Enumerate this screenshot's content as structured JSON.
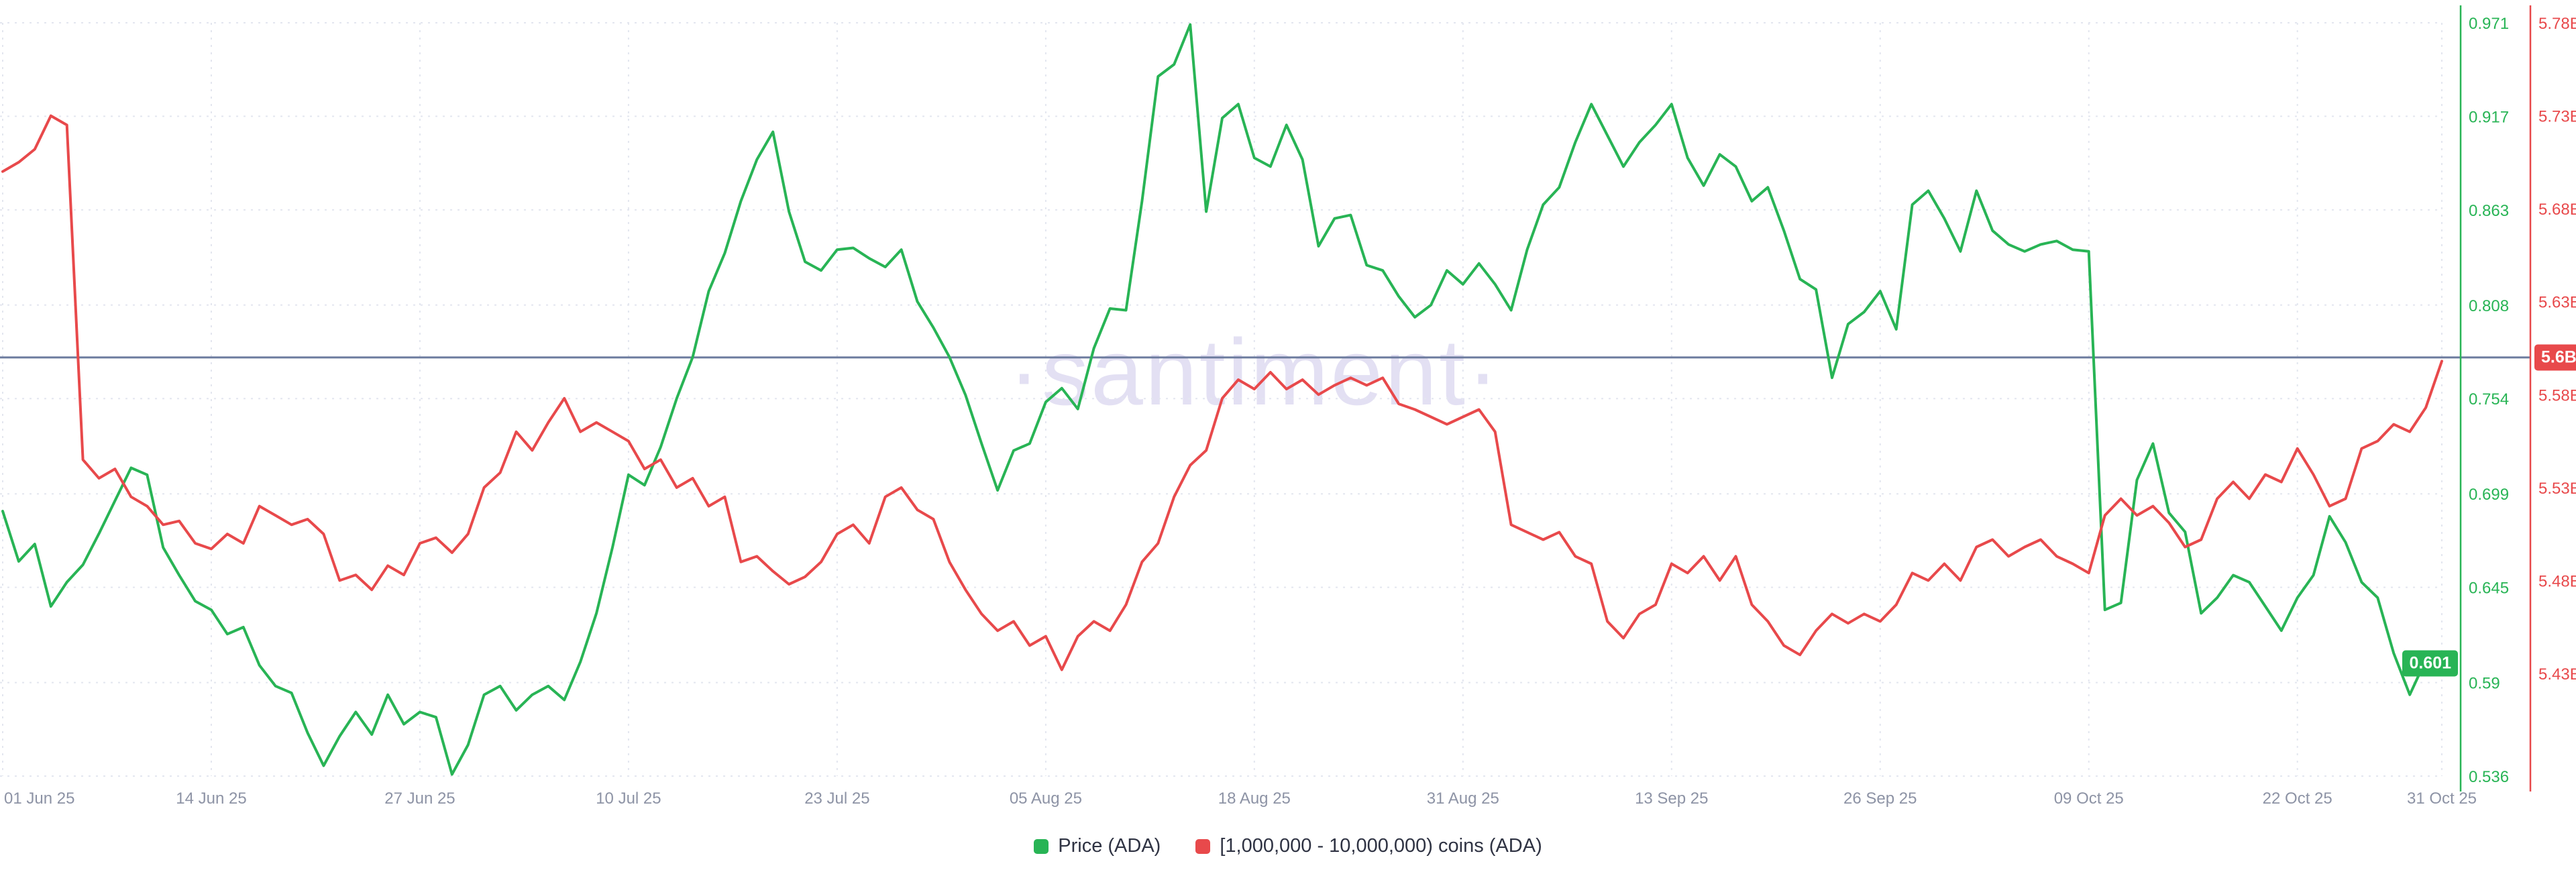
{
  "watermark": "·santiment·",
  "colors": {
    "price_line": "#28b455",
    "supply_line": "#e8494b",
    "reference_line": "#6c7b9e",
    "grid": "#e3e6ef",
    "x_label": "#8d93a5",
    "watermark": "#e3e0f3",
    "background": "#ffffff"
  },
  "badges": {
    "price_latest": "0.601",
    "supply_latest": "5.6B"
  },
  "legend": [
    {
      "label": "Price (ADA)",
      "color": "#28b455"
    },
    {
      "label": "[1,000,000 - 10,000,000) coins (ADA)",
      "color": "#e8494b"
    }
  ],
  "chart_data": {
    "type": "line",
    "title": "",
    "legend_position": "bottom",
    "grid": "dotted",
    "x_axis": {
      "total_days": 152,
      "ticks": [
        {
          "label": "01 Jun 25",
          "day": 0
        },
        {
          "label": "14 Jun 25",
          "day": 13
        },
        {
          "label": "27 Jun 25",
          "day": 26
        },
        {
          "label": "10 Jul 25",
          "day": 39
        },
        {
          "label": "23 Jul 25",
          "day": 52
        },
        {
          "label": "05 Aug 25",
          "day": 65
        },
        {
          "label": "18 Aug 25",
          "day": 78
        },
        {
          "label": "31 Aug 25",
          "day": 91
        },
        {
          "label": "13 Sep 25",
          "day": 104
        },
        {
          "label": "26 Sep 25",
          "day": 117
        },
        {
          "label": "09 Oct 25",
          "day": 130
        },
        {
          "label": "22 Oct 25",
          "day": 143
        },
        {
          "label": "31 Oct 25",
          "day": 152
        }
      ]
    },
    "price_axis": {
      "min": 0.536,
      "max": 0.971,
      "ticks": [
        {
          "label": "0.971",
          "value": 0.971
        },
        {
          "label": "0.917",
          "value": 0.917
        },
        {
          "label": "0.863",
          "value": 0.863
        },
        {
          "label": "0.808",
          "value": 0.808
        },
        {
          "label": "0.754",
          "value": 0.754
        },
        {
          "label": "0.699",
          "value": 0.699
        },
        {
          "label": "0.645",
          "value": 0.645
        },
        {
          "label": "0.59",
          "value": 0.59
        },
        {
          "label": "0.536",
          "value": 0.536
        }
      ]
    },
    "supply_axis": {
      "min": 5.43,
      "max": 5.78,
      "ticks": [
        {
          "label": "5.78B",
          "value": 5.78
        },
        {
          "label": "5.73B",
          "value": 5.73
        },
        {
          "label": "5.68B",
          "value": 5.68
        },
        {
          "label": "5.63B",
          "value": 5.63
        },
        {
          "label": "5.58B",
          "value": 5.58
        },
        {
          "label": "5.53B",
          "value": 5.53
        },
        {
          "label": "5.48B",
          "value": 5.48
        },
        {
          "label": "5.43B",
          "value": 5.43
        }
      ]
    },
    "reference_line": {
      "axis": "supply",
      "value": 5.6
    },
    "series": [
      {
        "name": "Price (ADA)",
        "axis": "price",
        "color": "#28b455",
        "values": [
          0.689,
          0.66,
          0.67,
          0.634,
          0.648,
          0.658,
          0.676,
          0.695,
          0.714,
          0.71,
          0.668,
          0.652,
          0.637,
          0.632,
          0.618,
          0.622,
          0.6,
          0.588,
          0.584,
          0.561,
          0.542,
          0.559,
          0.573,
          0.56,
          0.583,
          0.566,
          0.573,
          0.57,
          0.537,
          0.554,
          0.583,
          0.588,
          0.574,
          0.583,
          0.588,
          0.58,
          0.602,
          0.63,
          0.668,
          0.71,
          0.704,
          0.726,
          0.754,
          0.778,
          0.816,
          0.838,
          0.868,
          0.892,
          0.908,
          0.862,
          0.833,
          0.828,
          0.84,
          0.841,
          0.835,
          0.83,
          0.84,
          0.81,
          0.795,
          0.778,
          0.756,
          0.728,
          0.701,
          0.724,
          0.728,
          0.752,
          0.76,
          0.748,
          0.783,
          0.806,
          0.805,
          0.868,
          0.94,
          0.947,
          0.97,
          0.862,
          0.916,
          0.924,
          0.893,
          0.888,
          0.912,
          0.892,
          0.842,
          0.858,
          0.86,
          0.831,
          0.828,
          0.813,
          0.801,
          0.808,
          0.828,
          0.82,
          0.832,
          0.82,
          0.805,
          0.84,
          0.866,
          0.876,
          0.902,
          0.924,
          0.906,
          0.888,
          0.902,
          0.912,
          0.924,
          0.893,
          0.877,
          0.895,
          0.888,
          0.868,
          0.876,
          0.851,
          0.823,
          0.817,
          0.766,
          0.797,
          0.804,
          0.816,
          0.794,
          0.866,
          0.874,
          0.858,
          0.839,
          0.874,
          0.851,
          0.843,
          0.839,
          0.843,
          0.845,
          0.84,
          0.839,
          0.632,
          0.636,
          0.707,
          0.728,
          0.688,
          0.677,
          0.63,
          0.639,
          0.652,
          0.648,
          0.634,
          0.62,
          0.639,
          0.652,
          0.686,
          0.671,
          0.648,
          0.639,
          0.607,
          0.583,
          0.603,
          0.601
        ]
      },
      {
        "name": "[1,000,000 - 10,000,000) coins (ADA)",
        "axis": "supply",
        "color": "#e8494b",
        "values": [
          5.7,
          5.705,
          5.712,
          5.73,
          5.725,
          5.545,
          5.535,
          5.54,
          5.525,
          5.52,
          5.51,
          5.512,
          5.5,
          5.497,
          5.505,
          5.5,
          5.52,
          5.515,
          5.51,
          5.513,
          5.505,
          5.48,
          5.483,
          5.475,
          5.488,
          5.483,
          5.5,
          5.503,
          5.495,
          5.505,
          5.53,
          5.538,
          5.56,
          5.55,
          5.565,
          5.578,
          5.56,
          5.565,
          5.56,
          5.555,
          5.54,
          5.545,
          5.53,
          5.535,
          5.52,
          5.525,
          5.49,
          5.493,
          5.485,
          5.478,
          5.482,
          5.49,
          5.505,
          5.51,
          5.5,
          5.525,
          5.53,
          5.518,
          5.513,
          5.49,
          5.475,
          5.462,
          5.453,
          5.458,
          5.445,
          5.45,
          5.432,
          5.45,
          5.458,
          5.453,
          5.467,
          5.49,
          5.5,
          5.525,
          5.542,
          5.55,
          5.578,
          5.588,
          5.583,
          5.592,
          5.583,
          5.588,
          5.58,
          5.585,
          5.589,
          5.585,
          5.589,
          5.575,
          5.572,
          5.568,
          5.564,
          5.568,
          5.572,
          5.56,
          5.51,
          5.506,
          5.502,
          5.506,
          5.493,
          5.489,
          5.458,
          5.449,
          5.462,
          5.467,
          5.489,
          5.484,
          5.493,
          5.48,
          5.493,
          5.467,
          5.458,
          5.445,
          5.44,
          5.453,
          5.462,
          5.457,
          5.462,
          5.458,
          5.467,
          5.484,
          5.48,
          5.489,
          5.48,
          5.498,
          5.502,
          5.493,
          5.498,
          5.502,
          5.493,
          5.489,
          5.484,
          5.515,
          5.524,
          5.515,
          5.52,
          5.511,
          5.498,
          5.502,
          5.524,
          5.533,
          5.524,
          5.537,
          5.533,
          5.551,
          5.537,
          5.52,
          5.524,
          5.551,
          5.555,
          5.564,
          5.56,
          5.573,
          5.598
        ]
      }
    ]
  }
}
